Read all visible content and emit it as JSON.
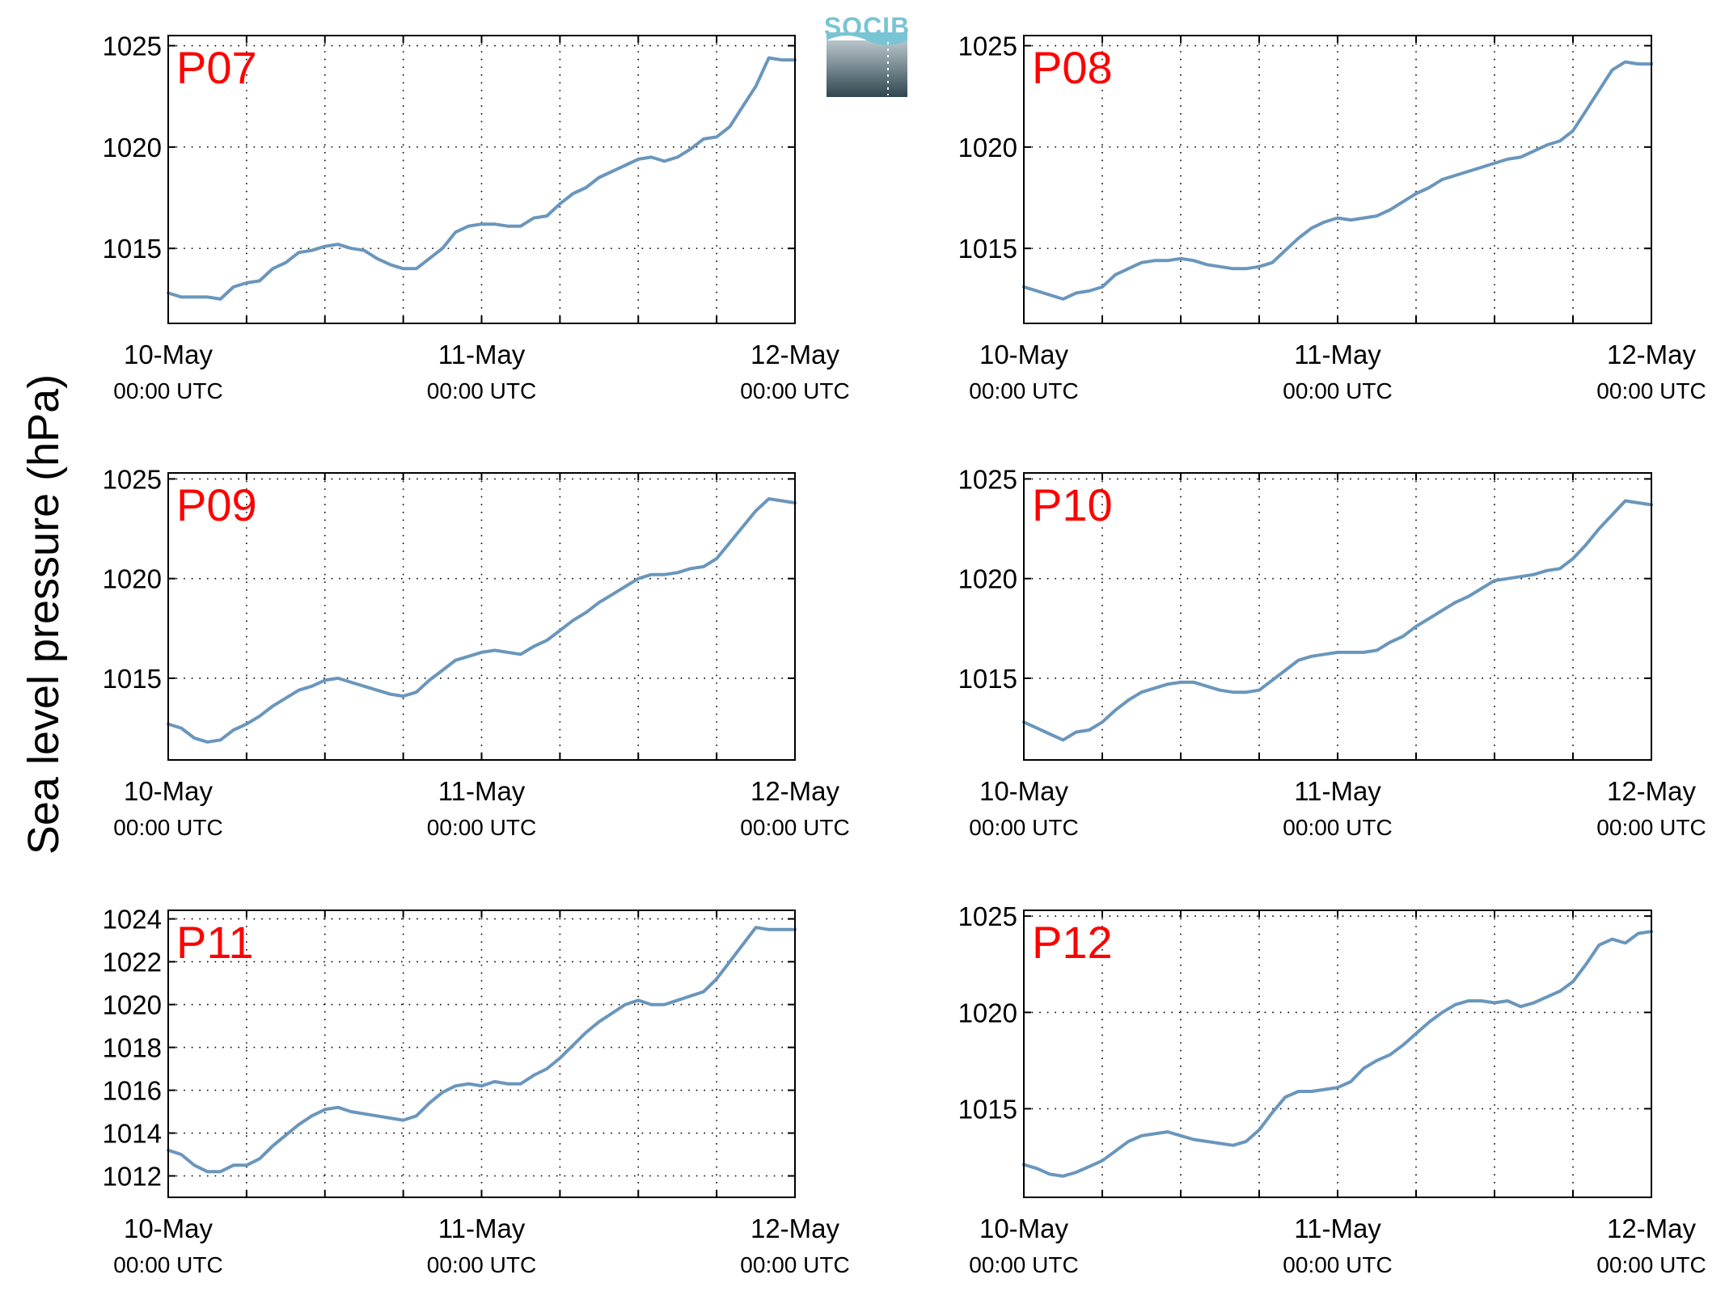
{
  "figure": {
    "ylabel": "Sea level pressure (hPa)",
    "logo_text": "SOCIB"
  },
  "colors": {
    "series": "#6a96bc",
    "panel_title": "#ff0000",
    "logo_top": "#79c4d4",
    "logo_bottom": "#2f4650"
  },
  "chart_data": [
    {
      "type": "line",
      "title": "P07",
      "x_tick_labels": [
        [
          "10-May",
          "00:00 UTC"
        ],
        [
          "11-May",
          "00:00 UTC"
        ],
        [
          "12-May",
          "00:00 UTC"
        ]
      ],
      "x_range_hours": [
        0,
        48
      ],
      "ylim": [
        1011.3,
        1025.5
      ],
      "yticks": [
        1015,
        1020,
        1025
      ],
      "grid": true,
      "series": [
        {
          "x_hours": [
            0,
            1,
            2,
            3,
            4,
            5,
            6,
            7,
            8,
            9,
            10,
            11,
            12,
            13,
            14,
            15,
            16,
            17,
            18,
            19,
            20,
            21,
            22,
            23,
            24,
            25,
            26,
            27,
            28,
            29,
            30,
            31,
            32,
            33,
            34,
            35,
            36,
            37,
            38,
            39,
            40,
            41,
            42,
            43,
            44,
            45,
            46,
            47,
            48
          ],
          "values": [
            1012.8,
            1012.6,
            1012.6,
            1012.6,
            1012.5,
            1013.1,
            1013.3,
            1013.4,
            1014.0,
            1014.3,
            1014.8,
            1014.9,
            1015.1,
            1015.2,
            1015.0,
            1014.9,
            1014.5,
            1014.2,
            1014.0,
            1014.0,
            1014.5,
            1015.0,
            1015.8,
            1016.1,
            1016.2,
            1016.2,
            1016.1,
            1016.1,
            1016.5,
            1016.6,
            1017.2,
            1017.7,
            1018.0,
            1018.5,
            1018.8,
            1019.1,
            1019.4,
            1019.5,
            1019.3,
            1019.5,
            1019.9,
            1020.4,
            1020.5,
            1021.0,
            1022.0,
            1023.0,
            1024.4,
            1024.3,
            1024.3
          ]
        }
      ]
    },
    {
      "type": "line",
      "title": "P08",
      "x_tick_labels": [
        [
          "10-May",
          "00:00 UTC"
        ],
        [
          "11-May",
          "00:00 UTC"
        ],
        [
          "12-May",
          "00:00 UTC"
        ]
      ],
      "x_range_hours": [
        0,
        48
      ],
      "ylim": [
        1011.3,
        1025.5
      ],
      "yticks": [
        1015,
        1020,
        1025
      ],
      "grid": true,
      "series": [
        {
          "x_hours": [
            0,
            1,
            2,
            3,
            4,
            5,
            6,
            7,
            8,
            9,
            10,
            11,
            12,
            13,
            14,
            15,
            16,
            17,
            18,
            19,
            20,
            21,
            22,
            23,
            24,
            25,
            26,
            27,
            28,
            29,
            30,
            31,
            32,
            33,
            34,
            35,
            36,
            37,
            38,
            39,
            40,
            41,
            42,
            43,
            44,
            45,
            46,
            47,
            48
          ],
          "values": [
            1013.1,
            1012.9,
            1012.7,
            1012.5,
            1012.8,
            1012.9,
            1013.1,
            1013.7,
            1014.0,
            1014.3,
            1014.4,
            1014.4,
            1014.5,
            1014.4,
            1014.2,
            1014.1,
            1014.0,
            1014.0,
            1014.1,
            1014.3,
            1014.9,
            1015.5,
            1016.0,
            1016.3,
            1016.5,
            1016.4,
            1016.5,
            1016.6,
            1016.9,
            1017.3,
            1017.7,
            1018.0,
            1018.4,
            1018.6,
            1018.8,
            1019.0,
            1019.2,
            1019.4,
            1019.5,
            1019.8,
            1020.1,
            1020.3,
            1020.8,
            1021.8,
            1022.8,
            1023.8,
            1024.2,
            1024.1,
            1024.1
          ]
        }
      ]
    },
    {
      "type": "line",
      "title": "P09",
      "x_tick_labels": [
        [
          "10-May",
          "00:00 UTC"
        ],
        [
          "11-May",
          "00:00 UTC"
        ],
        [
          "12-May",
          "00:00 UTC"
        ]
      ],
      "x_range_hours": [
        0,
        48
      ],
      "ylim": [
        1010.9,
        1025.3
      ],
      "yticks": [
        1015,
        1020,
        1025
      ],
      "grid": true,
      "series": [
        {
          "x_hours": [
            0,
            1,
            2,
            3,
            4,
            5,
            6,
            7,
            8,
            9,
            10,
            11,
            12,
            13,
            14,
            15,
            16,
            17,
            18,
            19,
            20,
            21,
            22,
            23,
            24,
            25,
            26,
            27,
            28,
            29,
            30,
            31,
            32,
            33,
            34,
            35,
            36,
            37,
            38,
            39,
            40,
            41,
            42,
            43,
            44,
            45,
            46,
            47,
            48
          ],
          "values": [
            1012.7,
            1012.5,
            1012.0,
            1011.8,
            1011.9,
            1012.4,
            1012.7,
            1013.1,
            1013.6,
            1014.0,
            1014.4,
            1014.6,
            1014.9,
            1015.0,
            1014.8,
            1014.6,
            1014.4,
            1014.2,
            1014.1,
            1014.3,
            1014.9,
            1015.4,
            1015.9,
            1016.1,
            1016.3,
            1016.4,
            1016.3,
            1016.2,
            1016.6,
            1016.9,
            1017.4,
            1017.9,
            1018.3,
            1018.8,
            1019.2,
            1019.6,
            1020.0,
            1020.2,
            1020.2,
            1020.3,
            1020.5,
            1020.6,
            1021.0,
            1021.8,
            1022.6,
            1023.4,
            1024.0,
            1023.9,
            1023.8
          ]
        }
      ]
    },
    {
      "type": "line",
      "title": "P10",
      "x_tick_labels": [
        [
          "10-May",
          "00:00 UTC"
        ],
        [
          "11-May",
          "00:00 UTC"
        ],
        [
          "12-May",
          "00:00 UTC"
        ]
      ],
      "x_range_hours": [
        0,
        48
      ],
      "ylim": [
        1010.9,
        1025.3
      ],
      "yticks": [
        1015,
        1020,
        1025
      ],
      "grid": true,
      "series": [
        {
          "x_hours": [
            0,
            1,
            2,
            3,
            4,
            5,
            6,
            7,
            8,
            9,
            10,
            11,
            12,
            13,
            14,
            15,
            16,
            17,
            18,
            19,
            20,
            21,
            22,
            23,
            24,
            25,
            26,
            27,
            28,
            29,
            30,
            31,
            32,
            33,
            34,
            35,
            36,
            37,
            38,
            39,
            40,
            41,
            42,
            43,
            44,
            45,
            46,
            47,
            48
          ],
          "values": [
            1012.8,
            1012.5,
            1012.2,
            1011.9,
            1012.3,
            1012.4,
            1012.8,
            1013.4,
            1013.9,
            1014.3,
            1014.5,
            1014.7,
            1014.8,
            1014.8,
            1014.6,
            1014.4,
            1014.3,
            1014.3,
            1014.4,
            1014.9,
            1015.4,
            1015.9,
            1016.1,
            1016.2,
            1016.3,
            1016.3,
            1016.3,
            1016.4,
            1016.8,
            1017.1,
            1017.6,
            1018.0,
            1018.4,
            1018.8,
            1019.1,
            1019.5,
            1019.9,
            1020.0,
            1020.1,
            1020.2,
            1020.4,
            1020.5,
            1021.0,
            1021.7,
            1022.5,
            1023.2,
            1023.9,
            1023.8,
            1023.7
          ]
        }
      ]
    },
    {
      "type": "line",
      "title": "P11",
      "x_tick_labels": [
        [
          "10-May",
          "00:00 UTC"
        ],
        [
          "11-May",
          "00:00 UTC"
        ],
        [
          "12-May",
          "00:00 UTC"
        ]
      ],
      "x_range_hours": [
        0,
        48
      ],
      "ylim": [
        1011.0,
        1024.4
      ],
      "yticks": [
        1012,
        1014,
        1016,
        1018,
        1020,
        1022,
        1024
      ],
      "grid": true,
      "series": [
        {
          "x_hours": [
            0,
            1,
            2,
            3,
            4,
            5,
            6,
            7,
            8,
            9,
            10,
            11,
            12,
            13,
            14,
            15,
            16,
            17,
            18,
            19,
            20,
            21,
            22,
            23,
            24,
            25,
            26,
            27,
            28,
            29,
            30,
            31,
            32,
            33,
            34,
            35,
            36,
            37,
            38,
            39,
            40,
            41,
            42,
            43,
            44,
            45,
            46,
            47,
            48
          ],
          "values": [
            1013.2,
            1013.0,
            1012.5,
            1012.2,
            1012.2,
            1012.5,
            1012.5,
            1012.8,
            1013.4,
            1013.9,
            1014.4,
            1014.8,
            1015.1,
            1015.2,
            1015.0,
            1014.9,
            1014.8,
            1014.7,
            1014.6,
            1014.8,
            1015.4,
            1015.9,
            1016.2,
            1016.3,
            1016.2,
            1016.4,
            1016.3,
            1016.3,
            1016.7,
            1017.0,
            1017.5,
            1018.1,
            1018.7,
            1019.2,
            1019.6,
            1020.0,
            1020.2,
            1020.0,
            1020.0,
            1020.2,
            1020.4,
            1020.6,
            1021.2,
            1022.0,
            1022.8,
            1023.6,
            1023.5,
            1023.5,
            1023.5
          ]
        }
      ]
    },
    {
      "type": "line",
      "title": "P12",
      "x_tick_labels": [
        [
          "10-May",
          "00:00 UTC"
        ],
        [
          "11-May",
          "00:00 UTC"
        ],
        [
          "12-May",
          "00:00 UTC"
        ]
      ],
      "x_range_hours": [
        0,
        48
      ],
      "ylim": [
        1010.4,
        1025.3
      ],
      "yticks": [
        1015,
        1020,
        1025
      ],
      "grid": true,
      "series": [
        {
          "x_hours": [
            0,
            1,
            2,
            3,
            4,
            5,
            6,
            7,
            8,
            9,
            10,
            11,
            12,
            13,
            14,
            15,
            16,
            17,
            18,
            19,
            20,
            21,
            22,
            23,
            24,
            25,
            26,
            27,
            28,
            29,
            30,
            31,
            32,
            33,
            34,
            35,
            36,
            37,
            38,
            39,
            40,
            41,
            42,
            43,
            44,
            45,
            46,
            47,
            48
          ],
          "values": [
            1012.1,
            1011.9,
            1011.6,
            1011.5,
            1011.7,
            1012.0,
            1012.3,
            1012.8,
            1013.3,
            1013.6,
            1013.7,
            1013.8,
            1013.6,
            1013.4,
            1013.3,
            1013.2,
            1013.1,
            1013.3,
            1013.9,
            1014.8,
            1015.6,
            1015.9,
            1015.9,
            1016.0,
            1016.1,
            1016.4,
            1017.1,
            1017.5,
            1017.8,
            1018.3,
            1018.9,
            1019.5,
            1020.0,
            1020.4,
            1020.6,
            1020.6,
            1020.5,
            1020.6,
            1020.3,
            1020.5,
            1020.8,
            1021.1,
            1021.6,
            1022.5,
            1023.5,
            1023.8,
            1023.6,
            1024.1,
            1024.2
          ]
        }
      ]
    }
  ]
}
